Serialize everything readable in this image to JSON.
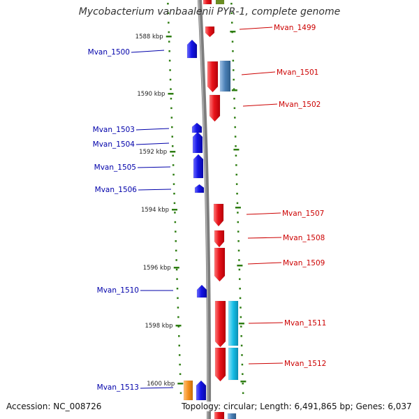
{
  "title": "Mycobacterium vanbaalenii PYR-1, complete genome",
  "footer": {
    "accession": "Accession: NC_008726",
    "summary": "Topology: circular; Length: 6,491,865 bp; Genes: 6,037"
  },
  "colors": {
    "forward_gene": "#e8141b",
    "reverse_gene": "#1515e6",
    "forward_label": "#cc0000",
    "reverse_label": "#0000aa",
    "feature_steelblue": "#4a7fb5",
    "feature_cyan": "#17bde6",
    "feature_orange": "#f5901e",
    "feature_olive": "#6b8e23",
    "tick": "#2e7d12",
    "backbone": "#808080"
  },
  "ruler": {
    "unit": "kbp",
    "ticks": [
      "1588 kbp",
      "1590 kbp",
      "1592 kbp",
      "1594 kbp",
      "1596 kbp",
      "1598 kbp",
      "1600 kbp"
    ]
  },
  "genes": {
    "forward": [
      "Mvan_1499",
      "Mvan_1501",
      "Mvan_1502",
      "Mvan_1507",
      "Mvan_1508",
      "Mvan_1509",
      "Mvan_1511",
      "Mvan_1512"
    ],
    "reverse": [
      "Mvan_1500",
      "Mvan_1503",
      "Mvan_1504",
      "Mvan_1505",
      "Mvan_1506",
      "Mvan_1510",
      "Mvan_1513"
    ]
  }
}
